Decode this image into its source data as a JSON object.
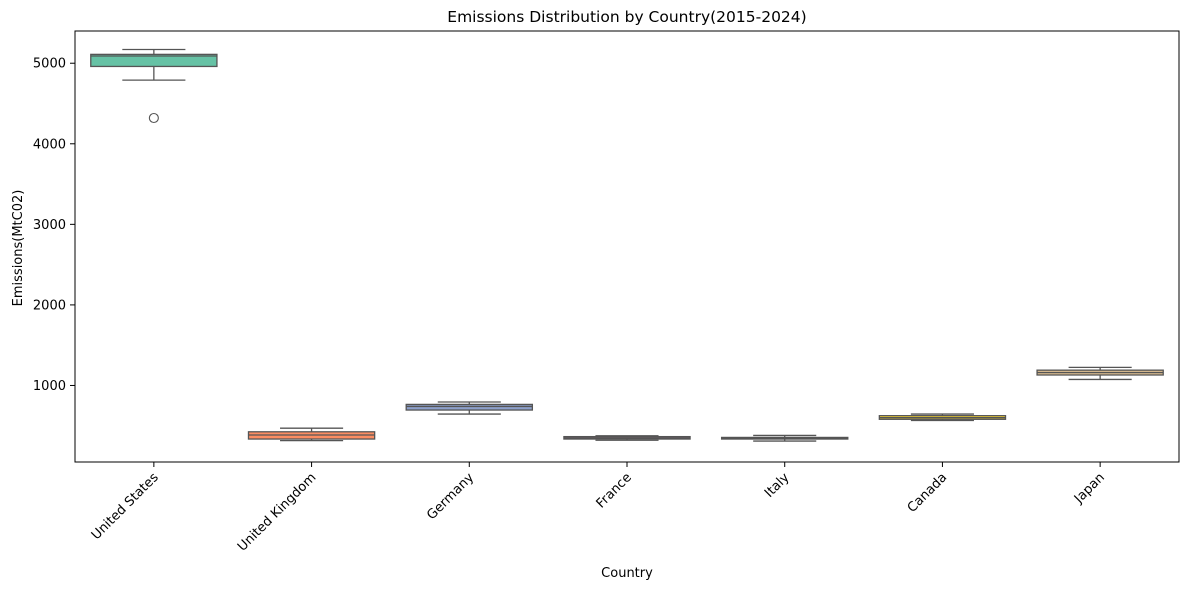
{
  "chart_data": {
    "type": "box",
    "title": "Emissions Distribution by Country(2015-2024)",
    "xlabel": "Country",
    "ylabel": "Emissions(MtC02)",
    "ylim": [
      50,
      5400
    ],
    "yticks": [
      1000,
      2000,
      3000,
      4000,
      5000
    ],
    "grid": false,
    "legend": "none",
    "colors": {
      "median_line": "#555555",
      "outlier_stroke": "#555555"
    },
    "categories": [
      "United States",
      "United Kingdom",
      "Germany",
      "France",
      "Italy",
      "Canada",
      "Japan"
    ],
    "series": [
      {
        "category": "United States",
        "color": "#66c2a5",
        "whisker_low": 4790,
        "q1": 4960,
        "median": 5090,
        "q3": 5110,
        "whisker_high": 5170,
        "outliers": [
          4320
        ]
      },
      {
        "category": "United Kingdom",
        "color": "#fc8d62",
        "whisker_low": 315,
        "q1": 335,
        "median": 385,
        "q3": 425,
        "whisker_high": 470,
        "outliers": []
      },
      {
        "category": "Germany",
        "color": "#8da0cb",
        "whisker_low": 645,
        "q1": 695,
        "median": 740,
        "q3": 765,
        "whisker_high": 795,
        "outliers": []
      },
      {
        "category": "France",
        "color": "#e78ac3",
        "whisker_low": 320,
        "q1": 335,
        "median": 350,
        "q3": 365,
        "whisker_high": 375,
        "outliers": []
      },
      {
        "category": "Italy",
        "color": "#a6d854",
        "whisker_low": 310,
        "q1": 335,
        "median": 345,
        "q3": 355,
        "whisker_high": 380,
        "outliers": []
      },
      {
        "category": "Canada",
        "color": "#ffd92f",
        "whisker_low": 565,
        "q1": 580,
        "median": 600,
        "q3": 625,
        "whisker_high": 645,
        "outliers": []
      },
      {
        "category": "Japan",
        "color": "#e5c494",
        "whisker_low": 1075,
        "q1": 1130,
        "median": 1160,
        "q3": 1190,
        "whisker_high": 1225,
        "outliers": []
      }
    ]
  }
}
